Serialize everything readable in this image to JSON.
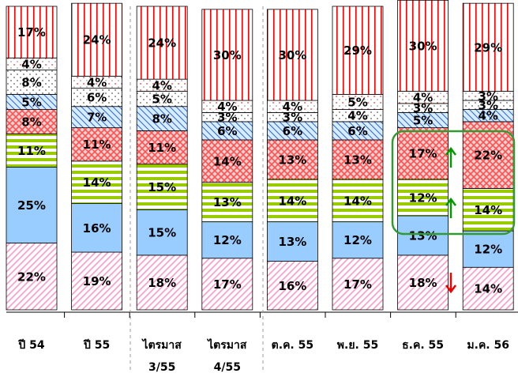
{
  "chart_data": {
    "type": "stacked-bar",
    "categories": [
      "ปี 54",
      "ปี 55",
      "ไตรมาส 3/55",
      "ไตรมาส 4/55",
      "ต.ค. 55",
      "พ.ย. 55",
      "ธ.ค. 55",
      "ม.ค. 56"
    ],
    "ylim": [
      0,
      100
    ],
    "series": [
      {
        "color": "#ff99cc",
        "values": [
          22,
          19,
          18,
          17,
          16,
          17,
          18,
          14
        ],
        "value_labels": [
          "22%",
          "19%",
          "18%",
          "17%",
          "16%",
          "17%",
          "18%",
          "14%"
        ]
      },
      {
        "color": "#99ccff",
        "values": [
          25,
          16,
          15,
          12,
          13,
          12,
          13,
          12
        ],
        "value_labels": [
          "25%",
          "16%",
          "15%",
          "12%",
          "13%",
          "12%",
          "13%",
          "12%"
        ]
      },
      {
        "color": "#99cc00",
        "values": [
          11,
          14,
          15,
          13,
          14,
          14,
          12,
          14
        ],
        "value_labels": [
          "11%",
          "14%",
          "15%",
          "13%",
          "14%",
          "14%",
          "12%",
          "14%"
        ]
      },
      {
        "color": "#ff5050",
        "values": [
          8,
          11,
          11,
          14,
          13,
          13,
          17,
          22
        ],
        "value_labels": [
          "8%",
          "11%",
          "11%",
          "14%",
          "13%",
          "13%",
          "17%",
          "22%"
        ]
      },
      {
        "color": "#3366cc",
        "values": [
          5,
          7,
          8,
          6,
          6,
          6,
          5,
          4
        ],
        "value_labels": [
          "5%",
          "7%",
          "8%",
          "6%",
          "6%",
          "6%",
          "5%",
          "4%"
        ]
      },
      {
        "color": "#333333",
        "values": [
          8,
          6,
          5,
          3,
          3,
          4,
          3,
          3
        ],
        "value_labels": [
          "8%",
          "6%",
          "5%",
          "3%",
          "3%",
          "4%",
          "3%",
          "3%"
        ]
      },
      {
        "color": "#ff3333",
        "values": [
          4,
          4,
          4,
          4,
          4,
          5,
          4,
          3
        ],
        "value_labels": [
          "4%",
          "4%",
          "4%",
          "4%",
          "4%",
          "5%",
          "4%",
          "3%"
        ]
      },
      {
        "color": "#ff0000",
        "values": [
          17,
          24,
          24,
          30,
          30,
          29,
          30,
          29
        ],
        "value_labels": [
          "17%",
          "24%",
          "24%",
          "30%",
          "30%",
          "29%",
          "30%",
          "29%"
        ]
      }
    ]
  }
}
